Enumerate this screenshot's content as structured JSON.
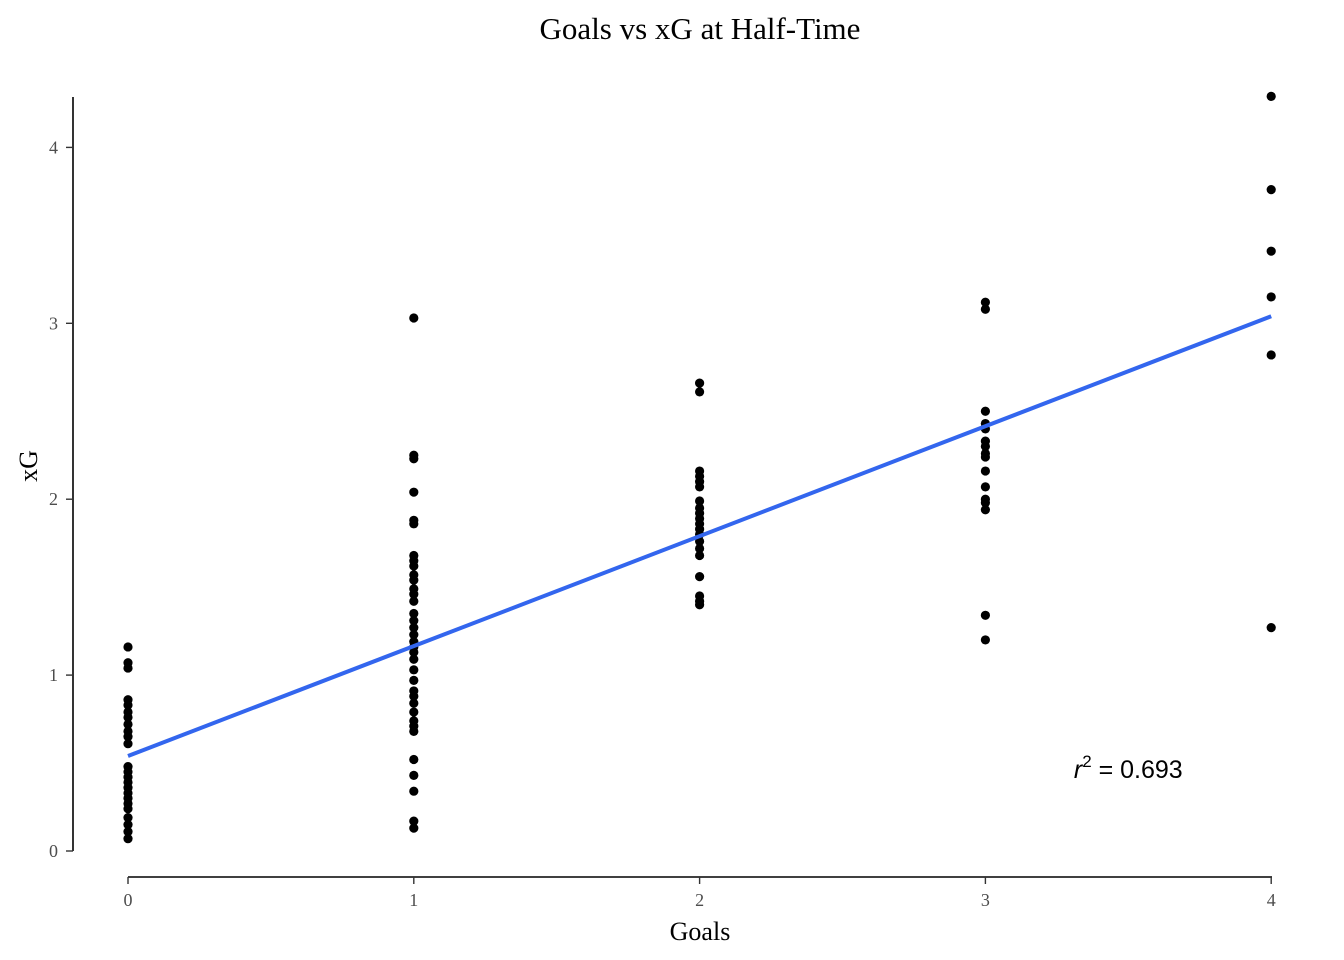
{
  "chart_data": {
    "type": "scatter",
    "title": "Goals vs xG at Half-Time",
    "xlabel": "Goals",
    "ylabel": "xG",
    "xlim": [
      -0.2,
      4.2
    ],
    "ylim": [
      0,
      4.3
    ],
    "x_ticks": [
      "0",
      "1",
      "2",
      "3",
      "4"
    ],
    "y_ticks": [
      "0",
      "1",
      "2",
      "3",
      "4"
    ],
    "grid": false,
    "points": [
      {
        "x": 0,
        "y": 1.16
      },
      {
        "x": 0,
        "y": 1.07
      },
      {
        "x": 0,
        "y": 1.04
      },
      {
        "x": 0,
        "y": 0.86
      },
      {
        "x": 0,
        "y": 0.83
      },
      {
        "x": 0,
        "y": 0.79
      },
      {
        "x": 0,
        "y": 0.76
      },
      {
        "x": 0,
        "y": 0.72
      },
      {
        "x": 0,
        "y": 0.68
      },
      {
        "x": 0,
        "y": 0.65
      },
      {
        "x": 0,
        "y": 0.61
      },
      {
        "x": 0,
        "y": 0.48
      },
      {
        "x": 0,
        "y": 0.45
      },
      {
        "x": 0,
        "y": 0.42
      },
      {
        "x": 0,
        "y": 0.39
      },
      {
        "x": 0,
        "y": 0.36
      },
      {
        "x": 0,
        "y": 0.33
      },
      {
        "x": 0,
        "y": 0.3
      },
      {
        "x": 0,
        "y": 0.27
      },
      {
        "x": 0,
        "y": 0.24
      },
      {
        "x": 0,
        "y": 0.19
      },
      {
        "x": 0,
        "y": 0.15
      },
      {
        "x": 0,
        "y": 0.11
      },
      {
        "x": 0,
        "y": 0.07
      },
      {
        "x": 1,
        "y": 3.03
      },
      {
        "x": 1,
        "y": 2.25
      },
      {
        "x": 1,
        "y": 2.23
      },
      {
        "x": 1,
        "y": 2.04
      },
      {
        "x": 1,
        "y": 1.88
      },
      {
        "x": 1,
        "y": 1.86
      },
      {
        "x": 1,
        "y": 1.68
      },
      {
        "x": 1,
        "y": 1.65
      },
      {
        "x": 1,
        "y": 1.62
      },
      {
        "x": 1,
        "y": 1.57
      },
      {
        "x": 1,
        "y": 1.54
      },
      {
        "x": 1,
        "y": 1.49
      },
      {
        "x": 1,
        "y": 1.46
      },
      {
        "x": 1,
        "y": 1.42
      },
      {
        "x": 1,
        "y": 1.35
      },
      {
        "x": 1,
        "y": 1.31
      },
      {
        "x": 1,
        "y": 1.27
      },
      {
        "x": 1,
        "y": 1.23
      },
      {
        "x": 1,
        "y": 1.19
      },
      {
        "x": 1,
        "y": 1.16
      },
      {
        "x": 1,
        "y": 1.13
      },
      {
        "x": 1,
        "y": 1.09
      },
      {
        "x": 1,
        "y": 1.03
      },
      {
        "x": 1,
        "y": 0.97
      },
      {
        "x": 1,
        "y": 0.91
      },
      {
        "x": 1,
        "y": 0.88
      },
      {
        "x": 1,
        "y": 0.84
      },
      {
        "x": 1,
        "y": 0.79
      },
      {
        "x": 1,
        "y": 0.74
      },
      {
        "x": 1,
        "y": 0.71
      },
      {
        "x": 1,
        "y": 0.68
      },
      {
        "x": 1,
        "y": 0.52
      },
      {
        "x": 1,
        "y": 0.43
      },
      {
        "x": 1,
        "y": 0.34
      },
      {
        "x": 1,
        "y": 0.17
      },
      {
        "x": 1,
        "y": 0.13
      },
      {
        "x": 2,
        "y": 2.66
      },
      {
        "x": 2,
        "y": 2.61
      },
      {
        "x": 2,
        "y": 2.16
      },
      {
        "x": 2,
        "y": 2.13
      },
      {
        "x": 2,
        "y": 2.1
      },
      {
        "x": 2,
        "y": 2.07
      },
      {
        "x": 2,
        "y": 1.99
      },
      {
        "x": 2,
        "y": 1.95
      },
      {
        "x": 2,
        "y": 1.92
      },
      {
        "x": 2,
        "y": 1.89
      },
      {
        "x": 2,
        "y": 1.86
      },
      {
        "x": 2,
        "y": 1.83
      },
      {
        "x": 2,
        "y": 1.8
      },
      {
        "x": 2,
        "y": 1.76
      },
      {
        "x": 2,
        "y": 1.72
      },
      {
        "x": 2,
        "y": 1.68
      },
      {
        "x": 2,
        "y": 1.56
      },
      {
        "x": 2,
        "y": 1.45
      },
      {
        "x": 2,
        "y": 1.42
      },
      {
        "x": 2,
        "y": 1.4
      },
      {
        "x": 3,
        "y": 3.12
      },
      {
        "x": 3,
        "y": 3.08
      },
      {
        "x": 3,
        "y": 2.5
      },
      {
        "x": 3,
        "y": 2.43
      },
      {
        "x": 3,
        "y": 2.4
      },
      {
        "x": 3,
        "y": 2.33
      },
      {
        "x": 3,
        "y": 2.3
      },
      {
        "x": 3,
        "y": 2.26
      },
      {
        "x": 3,
        "y": 2.24
      },
      {
        "x": 3,
        "y": 2.16
      },
      {
        "x": 3,
        "y": 2.07
      },
      {
        "x": 3,
        "y": 2.0
      },
      {
        "x": 3,
        "y": 1.98
      },
      {
        "x": 3,
        "y": 1.94
      },
      {
        "x": 3,
        "y": 1.34
      },
      {
        "x": 3,
        "y": 1.2
      },
      {
        "x": 4,
        "y": 4.29
      },
      {
        "x": 4,
        "y": 3.76
      },
      {
        "x": 4,
        "y": 3.41
      },
      {
        "x": 4,
        "y": 3.15
      },
      {
        "x": 4,
        "y": 2.82
      },
      {
        "x": 4,
        "y": 1.27
      }
    ],
    "fit_line": {
      "x": [
        0,
        4
      ],
      "y": [
        0.54,
        3.04
      ],
      "color": "#3366EE"
    },
    "annotation": {
      "var": "r",
      "sup": "2",
      "text": " = 0.693",
      "x": 3.5,
      "y": 0.46
    },
    "point_color": "#000000"
  }
}
